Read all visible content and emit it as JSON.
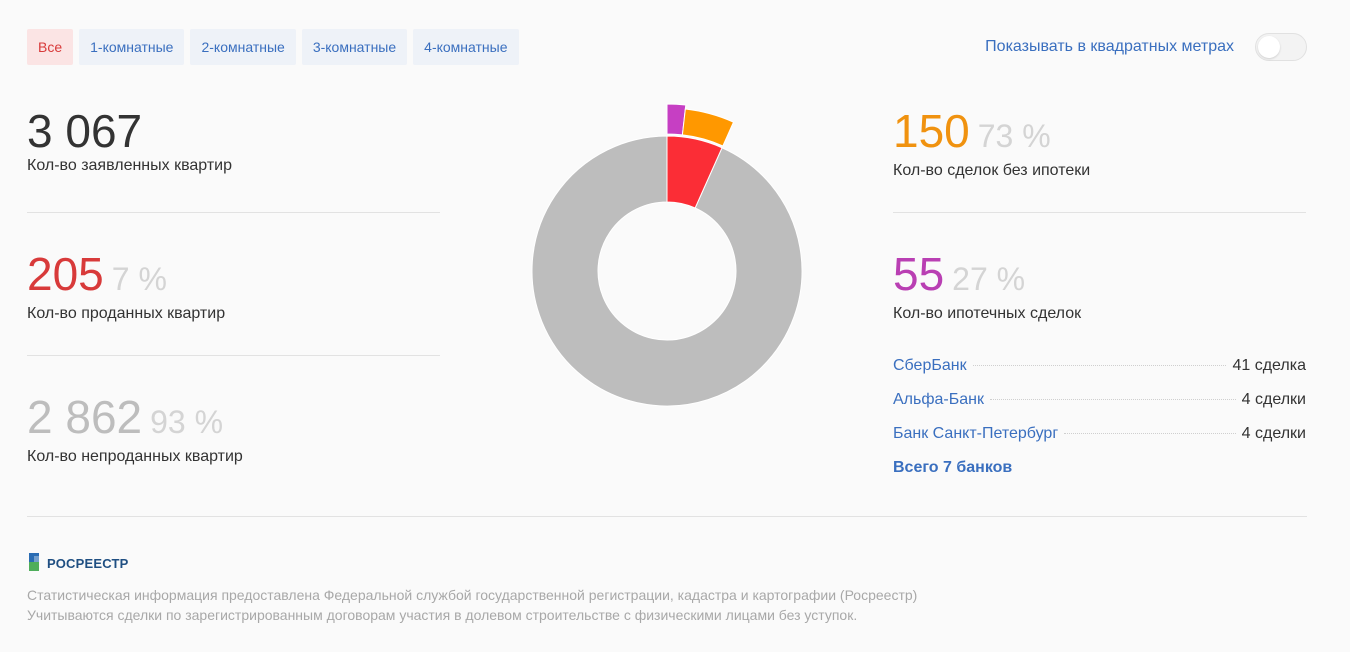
{
  "tabs": [
    {
      "label": "Все",
      "active": true
    },
    {
      "label": "1-комнатные",
      "active": false
    },
    {
      "label": "2-комнатные",
      "active": false
    },
    {
      "label": "3-комнатные",
      "active": false
    },
    {
      "label": "4-комнатные",
      "active": false
    }
  ],
  "toggle": {
    "label": "Показывать в квадратных метрах",
    "on": false
  },
  "stats": {
    "declared": {
      "value": "3 067",
      "caption": "Кол-во заявленных квартир",
      "color": "#333333"
    },
    "sold": {
      "value": "205",
      "percent": "7 %",
      "caption": "Кол-во проданных квартир",
      "color": "#d83a3a"
    },
    "unsold": {
      "value": "2 862",
      "percent": "93 %",
      "caption": "Кол-во непроданных квартир",
      "color": "#bdbdbd"
    },
    "no_mortgage": {
      "value": "150",
      "percent": "73 %",
      "caption": "Кол-во сделок без ипотеки",
      "color": "#f0920f"
    },
    "mortgage": {
      "value": "55",
      "percent": "27 %",
      "caption": "Кол-во ипотечных сделок",
      "color": "#b93fb3"
    }
  },
  "banks": [
    {
      "name": "СберБанк",
      "count": "41 сделка"
    },
    {
      "name": "Альфа-Банк",
      "count": "4 сделки"
    },
    {
      "name": "Банк Санкт-Петербург",
      "count": "4 сделки"
    }
  ],
  "all_banks_label": "Всего 7 банков",
  "footer": {
    "logo_text": "РОСРЕЕСТР",
    "line1": "Статистическая информация предоставлена Федеральной службой государственной регистрации, кадастра и картографии (Росреестр)",
    "line2": "Учитываются сделки по зарегистрированным договорам участия в долевом строительстве с физическими лицами без уступок."
  },
  "chart_data": {
    "type": "pie",
    "variant": "donut",
    "categories": [
      "Непроданные",
      "Без ипотеки",
      "Ипотечные"
    ],
    "values": [
      2862,
      150,
      55
    ],
    "colors": [
      "#bdbdbd",
      "#fb2d36",
      "#c63fc3",
      "#ff9800"
    ],
    "sold_breakdown": [
      {
        "name": "Без ипотеки",
        "value": 150,
        "color": "#fb2d36"
      },
      {
        "name": "Ипотечные",
        "value": 55,
        "color": "#c63fc3"
      },
      {
        "name": "highlight",
        "value": 0,
        "color": "#ff9800"
      }
    ]
  }
}
